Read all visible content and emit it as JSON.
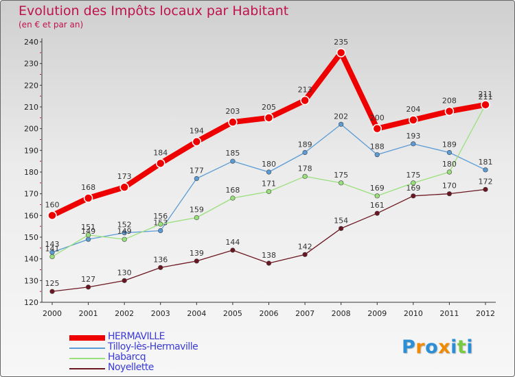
{
  "header": {
    "title": "Evolution des Impôts locaux par Habitant",
    "subtitle": "(en € et par an)"
  },
  "chart_data": {
    "type": "line",
    "title": "Evolution des Impôts locaux par Habitant",
    "subtitle": "(en € et par an)",
    "xlabel": "",
    "ylabel": "",
    "x": [
      2000,
      2001,
      2002,
      2003,
      2004,
      2005,
      2006,
      2007,
      2008,
      2009,
      2010,
      2011,
      2012
    ],
    "ylim": [
      120,
      240
    ],
    "yticks": [
      120,
      130,
      140,
      150,
      160,
      170,
      180,
      190,
      200,
      210,
      220,
      230,
      240
    ],
    "grid": false,
    "legend_position": "bottom-left",
    "series": [
      {
        "name": "Noyellette",
        "color": "#6b1520",
        "values": [
          125,
          127,
          130,
          136,
          139,
          144,
          138,
          142,
          154,
          161,
          169,
          170,
          172
        ]
      },
      {
        "name": "Tilloy-lès-Hermaville",
        "color": "#5b9bd5",
        "values": [
          143,
          149,
          152,
          153,
          177,
          185,
          180,
          189,
          202,
          188,
          193,
          189,
          181
        ]
      },
      {
        "name": "Habarcq",
        "color": "#99e07a",
        "values": [
          141,
          151,
          149,
          156,
          159,
          168,
          171,
          178,
          175,
          169,
          175,
          180,
          211
        ]
      },
      {
        "name": "HERMAVILLE",
        "color": "#ee0000",
        "values": [
          160,
          168,
          173,
          184,
          194,
          203,
          205,
          213,
          235,
          200,
          204,
          208,
          211
        ]
      }
    ],
    "legend_order": [
      "HERMAVILLE",
      "Tilloy-lès-Hermaville",
      "Habarcq",
      "Noyellette"
    ]
  },
  "logo": {
    "letters": [
      "P",
      "r",
      "o",
      "x",
      "i",
      "t",
      "i"
    ],
    "colors": [
      "#2a8fd6",
      "#f08a00",
      "#2a8fd6",
      "#f08a00",
      "#2a8fd6",
      "#7ac943",
      "#2a8fd6"
    ]
  }
}
